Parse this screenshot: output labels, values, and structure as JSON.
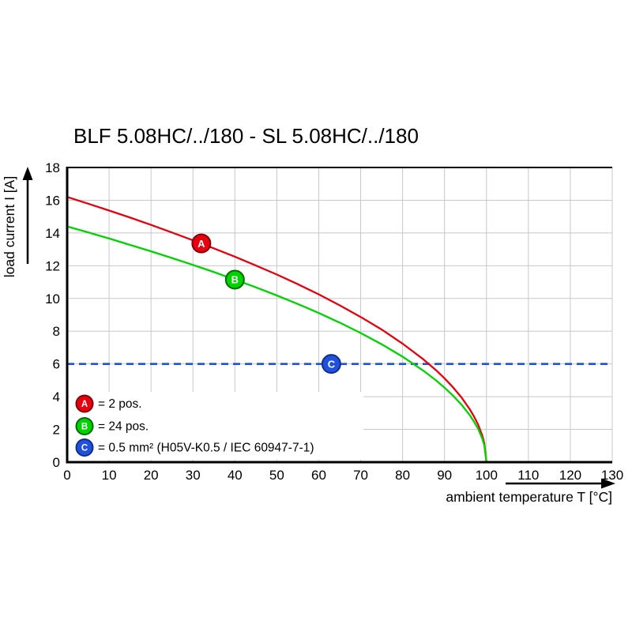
{
  "chart_data": {
    "type": "line",
    "title": "BLF 5.08HC/../180 - SL 5.08HC/../180",
    "xlabel": "ambient temperature T [°C]",
    "ylabel": "load current I [A]",
    "xlim": [
      0,
      130
    ],
    "ylim": [
      0,
      18
    ],
    "x_ticks": [
      0,
      10,
      20,
      30,
      40,
      50,
      60,
      70,
      80,
      90,
      100,
      110,
      120,
      130
    ],
    "y_ticks": [
      0,
      2,
      4,
      6,
      8,
      10,
      12,
      14,
      16,
      18
    ],
    "grid": true,
    "grid_color": "#c8c8c8",
    "axis_color": "#000000",
    "legend_position": "bottom-left-inside",
    "series": [
      {
        "id": "A",
        "legend_label": "= 2 pos.",
        "color": "#e8000d",
        "rim": "#7f000e",
        "line_style": "solid",
        "points": [
          [
            0,
            16.2
          ],
          [
            5,
            15.79
          ],
          [
            10,
            15.37
          ],
          [
            15,
            14.94
          ],
          [
            20,
            14.49
          ],
          [
            25,
            14.03
          ],
          [
            30,
            13.55
          ],
          [
            35,
            13.06
          ],
          [
            40,
            12.55
          ],
          [
            45,
            12.01
          ],
          [
            50,
            11.46
          ],
          [
            55,
            10.87
          ],
          [
            60,
            10.25
          ],
          [
            65,
            9.58
          ],
          [
            70,
            8.87
          ],
          [
            75,
            8.1
          ],
          [
            80,
            7.24
          ],
          [
            85,
            6.27
          ],
          [
            88,
            5.61
          ],
          [
            90,
            5.12
          ],
          [
            92,
            4.58
          ],
          [
            94,
            3.97
          ],
          [
            96,
            3.24
          ],
          [
            97,
            2.81
          ],
          [
            98,
            2.29
          ],
          [
            99,
            1.62
          ],
          [
            99.5,
            1.15
          ],
          [
            100,
            0
          ]
        ],
        "marker": {
          "letter": "A",
          "x": 32,
          "y": 13.36
        }
      },
      {
        "id": "B",
        "legend_label": "= 24 pos.",
        "color": "#00d400",
        "rim": "#006a00",
        "line_style": "solid",
        "points": [
          [
            0,
            14.4
          ],
          [
            5,
            14.04
          ],
          [
            10,
            13.66
          ],
          [
            15,
            13.27
          ],
          [
            20,
            12.88
          ],
          [
            25,
            12.47
          ],
          [
            30,
            12.05
          ],
          [
            35,
            11.61
          ],
          [
            40,
            11.15
          ],
          [
            45,
            10.68
          ],
          [
            50,
            10.18
          ],
          [
            55,
            9.66
          ],
          [
            60,
            9.11
          ],
          [
            65,
            8.52
          ],
          [
            70,
            7.89
          ],
          [
            75,
            7.2
          ],
          [
            80,
            6.44
          ],
          [
            85,
            5.58
          ],
          [
            88,
            4.99
          ],
          [
            90,
            4.55
          ],
          [
            92,
            4.07
          ],
          [
            94,
            3.53
          ],
          [
            96,
            2.88
          ],
          [
            97,
            2.49
          ],
          [
            98,
            2.04
          ],
          [
            99,
            1.44
          ],
          [
            99.5,
            1.02
          ],
          [
            100,
            0
          ]
        ],
        "marker": {
          "letter": "B",
          "x": 40,
          "y": 11.15
        }
      },
      {
        "id": "C",
        "legend_label": "= 0.5 mm² (H05V-K0.5 / IEC 60947-7-1)",
        "color": "#2050e0",
        "rim": "#12307e",
        "line_style": "dashed-hline",
        "y": 6,
        "marker": {
          "letter": "C",
          "x": 63,
          "y": 6
        }
      }
    ]
  }
}
